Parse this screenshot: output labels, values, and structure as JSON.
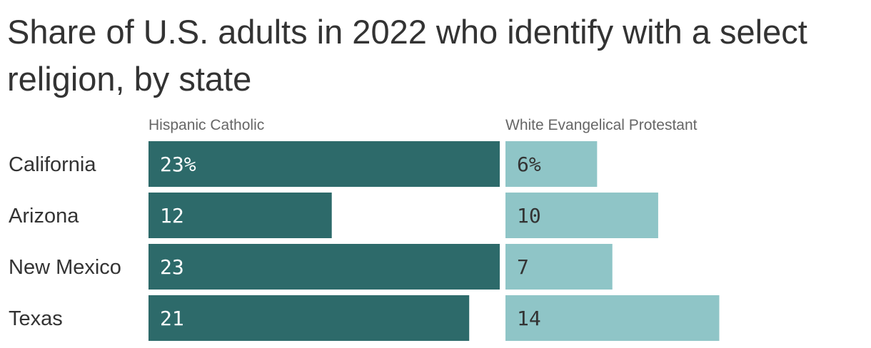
{
  "chart_data": {
    "type": "bar",
    "title": "Share of U.S. adults in 2022 who identify with a select religion, by state",
    "categories": [
      "California",
      "Arizona",
      "New Mexico",
      "Texas"
    ],
    "series": [
      {
        "name": "Hispanic Catholic",
        "values": [
          23,
          12,
          23,
          21
        ],
        "labels": [
          "23%",
          "12",
          "23",
          "21"
        ],
        "color": "#2d6a6a",
        "label_color": "#ffffff"
      },
      {
        "name": "White Evangelical Protestant",
        "values": [
          6,
          10,
          7,
          14
        ],
        "labels": [
          "6%",
          "10",
          "7",
          "14"
        ],
        "color": "#8fc5c7",
        "label_color": "#333333"
      }
    ],
    "orientation": "horizontal",
    "layout": "small-multiples",
    "units": "percent",
    "xlim": [
      0,
      23
    ]
  }
}
